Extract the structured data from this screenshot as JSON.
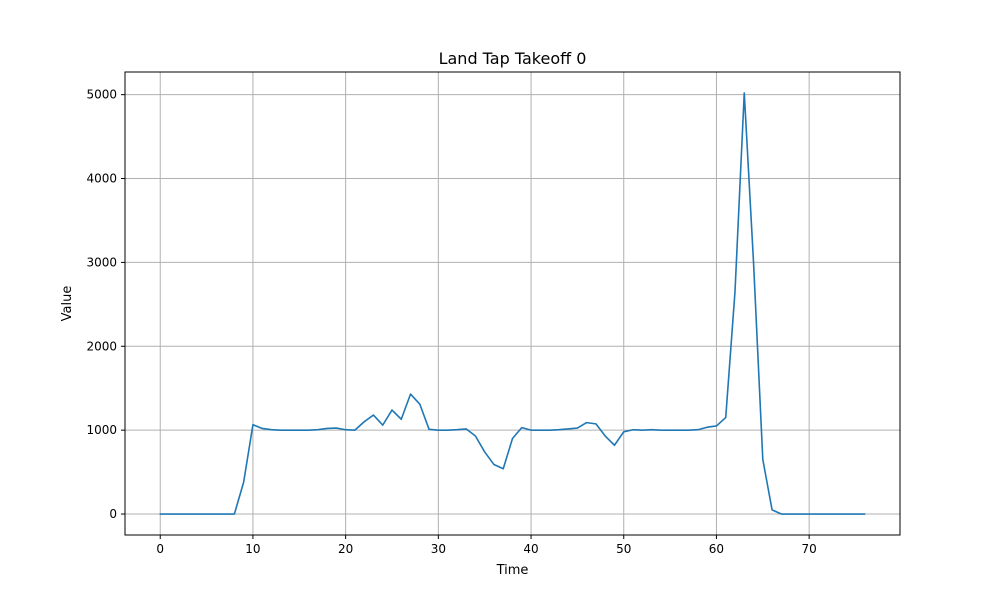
{
  "chart_data": {
    "type": "line",
    "title": "Land Tap Takeoff 0",
    "xlabel": "Time",
    "ylabel": "Value",
    "xlim": [
      -3.8,
      79.8
    ],
    "ylim": [
      -250,
      5270
    ],
    "xticks": [
      0,
      10,
      20,
      30,
      40,
      50,
      60,
      70
    ],
    "yticks": [
      0,
      1000,
      2000,
      3000,
      4000,
      5000
    ],
    "grid": true,
    "series": [
      {
        "color": "#1f77b4",
        "x": [
          0,
          1,
          2,
          3,
          4,
          5,
          6,
          7,
          8,
          9,
          10,
          11,
          12,
          13,
          14,
          15,
          16,
          17,
          18,
          19,
          20,
          21,
          22,
          23,
          24,
          25,
          26,
          27,
          28,
          29,
          30,
          31,
          32,
          33,
          34,
          35,
          36,
          37,
          38,
          39,
          40,
          41,
          42,
          43,
          44,
          45,
          46,
          47,
          48,
          49,
          50,
          51,
          52,
          53,
          54,
          55,
          56,
          57,
          58,
          59,
          60,
          61,
          62,
          63,
          64,
          65,
          66,
          67,
          68,
          69,
          70,
          71,
          72,
          73,
          74,
          75,
          76
        ],
        "y": [
          0,
          0,
          0,
          0,
          0,
          0,
          0,
          0,
          0,
          380,
          1065,
          1020,
          1005,
          1000,
          1000,
          1000,
          1000,
          1005,
          1020,
          1025,
          1005,
          1000,
          1100,
          1180,
          1060,
          1240,
          1130,
          1430,
          1310,
          1010,
          1000,
          1000,
          1005,
          1015,
          930,
          740,
          590,
          540,
          900,
          1030,
          1000,
          1000,
          1000,
          1005,
          1015,
          1025,
          1090,
          1075,
          930,
          820,
          980,
          1005,
          1000,
          1005,
          1000,
          1000,
          1000,
          1000,
          1005,
          1035,
          1050,
          1150,
          2650,
          5020,
          3000,
          650,
          50,
          0,
          0,
          0,
          0,
          0,
          0,
          0,
          0,
          0,
          0
        ]
      }
    ]
  }
}
